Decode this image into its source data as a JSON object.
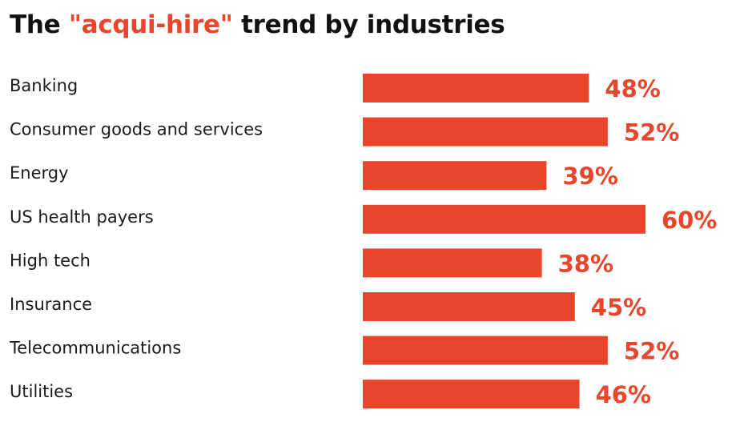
{
  "title": {
    "prefix": "The ",
    "highlight": "\"acqui-hire\"",
    "suffix": " trend by industries"
  },
  "colors": {
    "accent": "#e8452a",
    "text": "#1a1a1a"
  },
  "chart_data": {
    "type": "bar",
    "orientation": "horizontal",
    "title": "The \"acqui-hire\" trend by industries",
    "categories": [
      "Banking",
      "Consumer goods and services",
      "Energy",
      "US health payers",
      "High tech",
      "Insurance",
      "Telecommunications",
      "Utilities"
    ],
    "values": [
      48,
      52,
      39,
      60,
      38,
      45,
      52,
      46
    ],
    "value_labels": [
      "48%",
      "52%",
      "39%",
      "60%",
      "38%",
      "45%",
      "52%",
      "46%"
    ],
    "unit": "%",
    "xlim": [
      0,
      60
    ],
    "xlabel": "",
    "ylabel": "",
    "grid": false,
    "legend": "none"
  }
}
